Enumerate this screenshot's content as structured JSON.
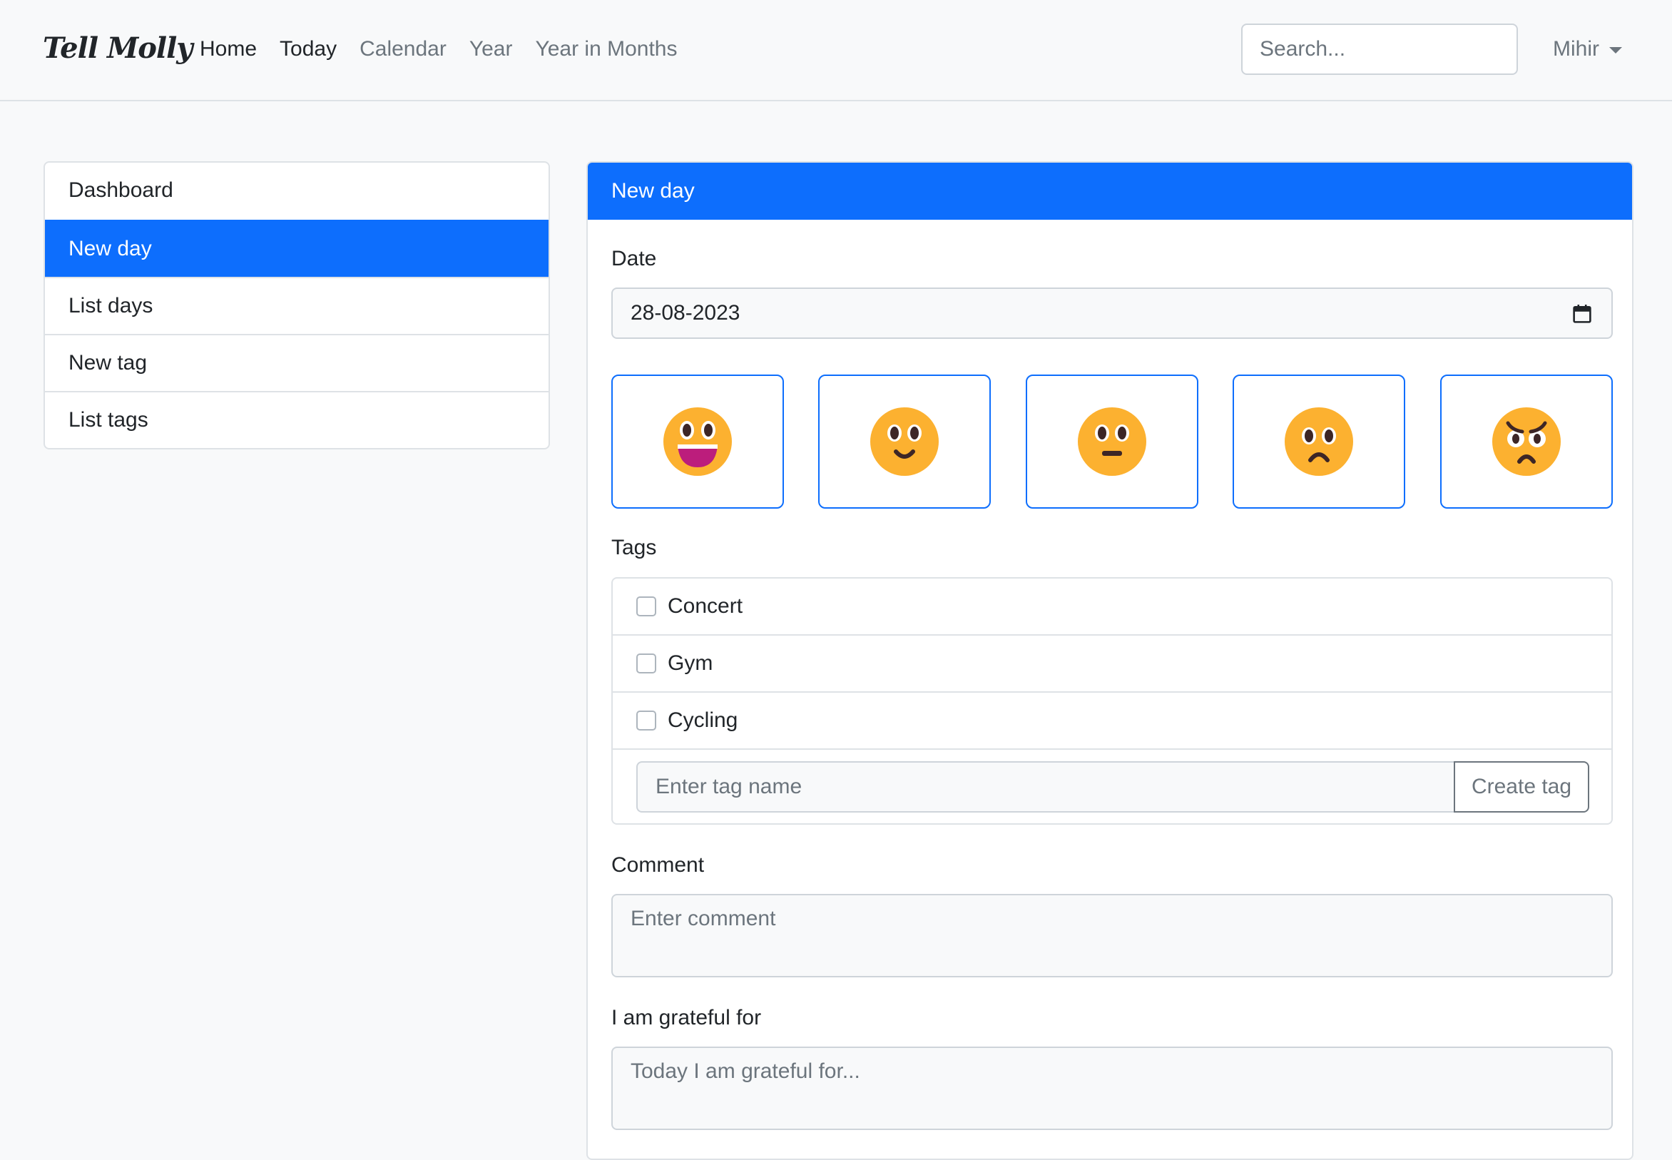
{
  "nav": {
    "logo": "Tell Molly",
    "links": [
      "Home",
      "Today",
      "Calendar",
      "Year",
      "Year in Months"
    ],
    "search_placeholder": "Search...",
    "user": "Mihir"
  },
  "sidebar": {
    "items": [
      "Dashboard",
      "New day",
      "List days",
      "New tag",
      "List tags"
    ],
    "active": "New day"
  },
  "card": {
    "title": "New day",
    "date_label": "Date",
    "date_value": "28-08-2023",
    "moods": [
      "very-happy",
      "happy",
      "neutral",
      "sad",
      "angry"
    ],
    "tags_label": "Tags",
    "tags": [
      "Concert",
      "Gym",
      "Cycling"
    ],
    "tag_placeholder": "Enter tag name",
    "create_tag": "Create tag",
    "comment_label": "Comment",
    "comment_placeholder": "Enter comment",
    "grateful_label": "I am grateful for",
    "grateful_placeholder": "Today I am grateful for..."
  },
  "colors": {
    "primary": "#0d6efd",
    "emoji": "#fcb130"
  }
}
